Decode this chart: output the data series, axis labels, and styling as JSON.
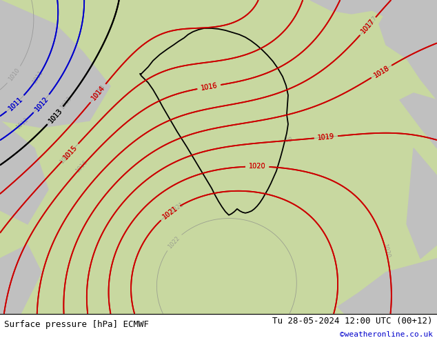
{
  "title_left": "Surface pressure [hPa] ECMWF",
  "title_right": "Tu 28-05-2024 12:00 UTC (00+12)",
  "watermark": "©weatheronline.co.uk",
  "map_bg": "#c8d8a0",
  "outside_bg": "#c0c0c0",
  "bottom_text_color": "black",
  "watermark_color": "#0000cc",
  "isobar_color_red": "#cc0000",
  "isobar_color_blue": "#0000cc",
  "isobar_color_black": "#000000",
  "isobar_color_gray": "#888888",
  "figsize": [
    6.34,
    4.9
  ],
  "dpi": 100
}
